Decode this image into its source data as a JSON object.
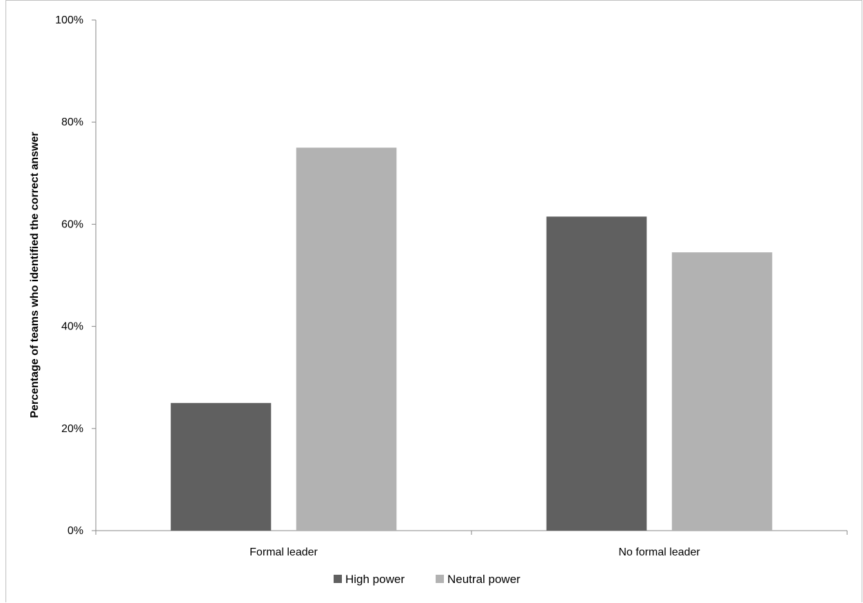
{
  "chart_data": {
    "type": "bar",
    "categories": [
      "Formal leader",
      "No formal leader"
    ],
    "series": [
      {
        "name": "High power",
        "values": [
          25,
          61.5
        ],
        "color": "#606060"
      },
      {
        "name": "Neutral power",
        "values": [
          75,
          54.5
        ],
        "color": "#b2b2b2"
      }
    ],
    "ylabel": "Percentage of teams who identified the correct answer",
    "xlabel": "",
    "ylim": [
      0,
      100
    ],
    "yticks": [
      "0%",
      "20%",
      "40%",
      "60%",
      "80%",
      "100%"
    ],
    "ytick_values": [
      0,
      20,
      40,
      60,
      80,
      100
    ],
    "grid": false,
    "legend_position": "bottom"
  }
}
